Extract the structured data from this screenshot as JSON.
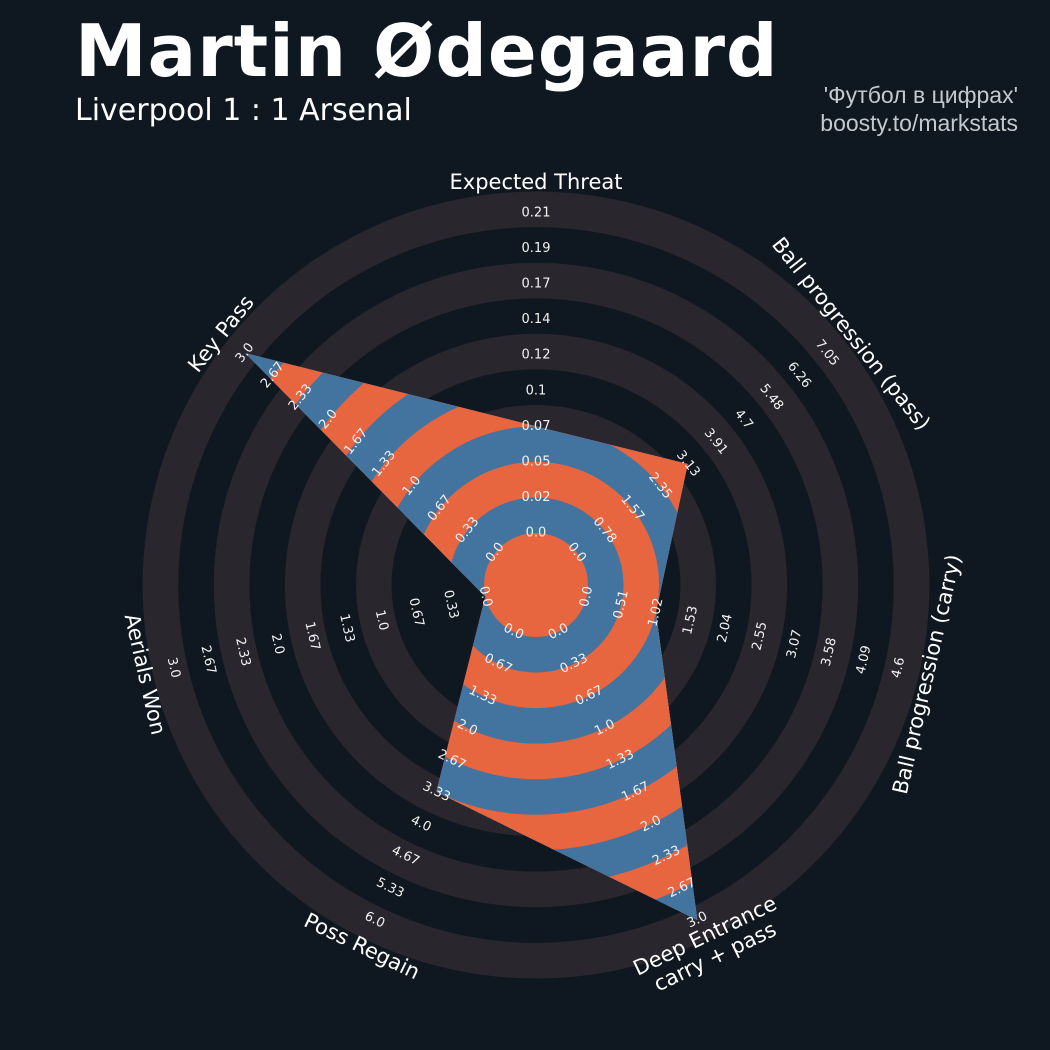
{
  "header": {
    "player": "Martin Ødegaard",
    "match": "Liverpool 1 : 1 Arsenal",
    "credit_line1": "'Футбол в цифрах'",
    "credit_line2": "boosty.to/markstats"
  },
  "colors": {
    "background": "#0f1820",
    "ring": "#2a262d",
    "fill_a": "#e7653f",
    "fill_b": "#43749f"
  },
  "chart_data": {
    "type": "radar",
    "title": "Martin Ødegaard",
    "subtitle": "Liverpool 1 : 1 Arsenal",
    "axes": [
      {
        "name": "Expected Threat",
        "lines": [
          "Expected Threat"
        ],
        "value": 0.07,
        "min": 0.0,
        "max": 0.21,
        "ticks": [
          "0.0",
          "0.02",
          "0.05",
          "0.07",
          "0.1",
          "0.12",
          "0.14",
          "0.17",
          "0.19",
          "0.21"
        ]
      },
      {
        "name": "Ball progression (pass)",
        "lines": [
          "Ball progression (pass)"
        ],
        "value": 3.13,
        "min": 0.0,
        "max": 7.05,
        "ticks": [
          "0.0",
          "0.78",
          "1.57",
          "2.35",
          "3.13",
          "3.91",
          "4.7",
          "5.48",
          "6.26",
          "7.05"
        ]
      },
      {
        "name": "Ball progression (carry)",
        "lines": [
          "Ball progression (carry)"
        ],
        "value": 1.02,
        "min": 0.0,
        "max": 4.6,
        "ticks": [
          "0.0",
          "0.51",
          "1.02",
          "1.53",
          "2.04",
          "2.55",
          "3.07",
          "3.58",
          "4.09",
          "4.6"
        ]
      },
      {
        "name": "Deep Entrance carry + pass",
        "lines": [
          "Deep Entrance",
          "carry + pass"
        ],
        "value": 3.0,
        "min": 0.0,
        "max": 3.0,
        "ticks": [
          "0.0",
          "0.33",
          "0.67",
          "1.0",
          "1.33",
          "1.67",
          "2.0",
          "2.33",
          "2.67",
          "3.0"
        ]
      },
      {
        "name": "Poss Regain",
        "lines": [
          "Poss Regain"
        ],
        "value": 3.33,
        "min": 0.0,
        "max": 6.0,
        "ticks": [
          "0.0",
          "0.67",
          "1.33",
          "2.0",
          "2.67",
          "3.33",
          "4.0",
          "4.67",
          "5.33",
          "6.0"
        ]
      },
      {
        "name": "Aerials Won",
        "lines": [
          "Aerials Won"
        ],
        "value": 0.0,
        "min": 0.0,
        "max": 3.0,
        "ticks": [
          "0.0",
          "0.33",
          "0.67",
          "1.0",
          "1.33",
          "1.67",
          "2.0",
          "2.33",
          "2.67",
          "3.0"
        ]
      },
      {
        "name": "Key Pass",
        "lines": [
          "Key Pass"
        ],
        "value": 3.0,
        "min": 0.0,
        "max": 3.0,
        "ticks": [
          "0.0",
          "0.33",
          "0.67",
          "1.0",
          "1.33",
          "1.67",
          "2.0",
          "2.33",
          "2.67",
          "3.0"
        ]
      }
    ]
  }
}
